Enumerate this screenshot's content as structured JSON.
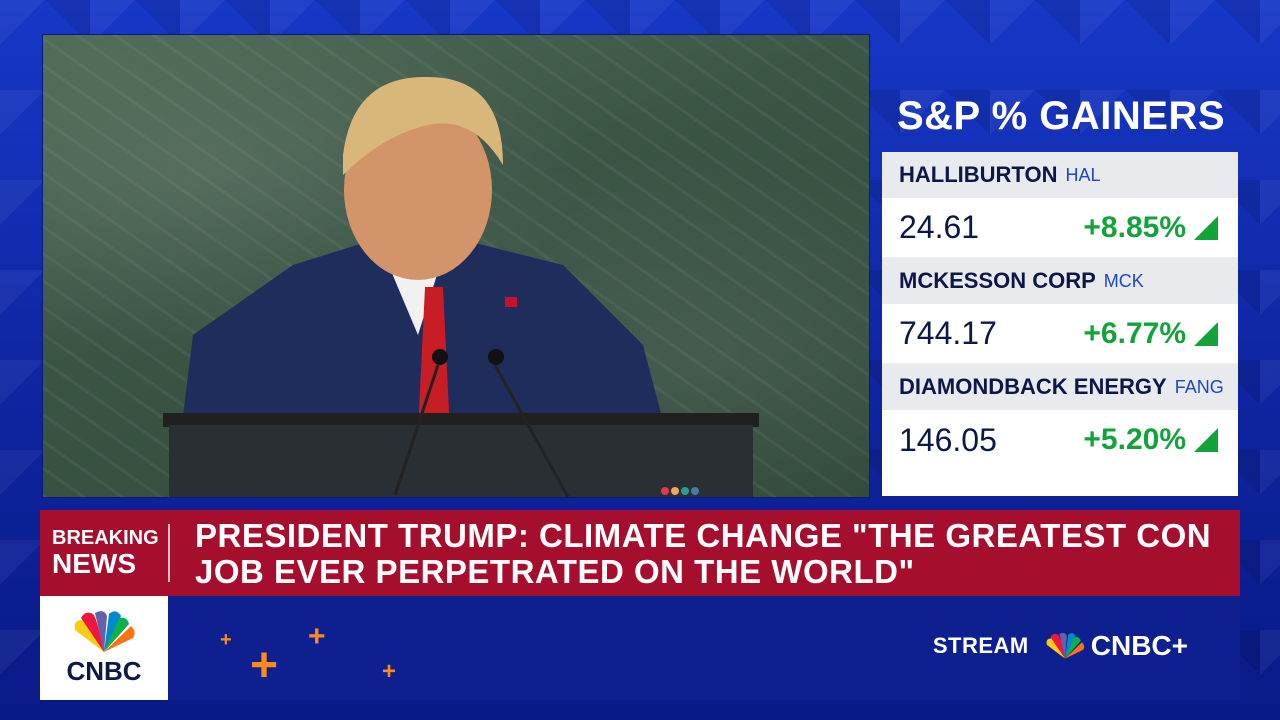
{
  "gainers": {
    "title": "S&P % GAINERS",
    "stocks": [
      {
        "company": "HALLIBURTON",
        "ticker": "HAL",
        "price": "24.61",
        "change": "+8.85%"
      },
      {
        "company": "MCKESSON CORP",
        "ticker": "MCK",
        "price": "744.17",
        "change": "+6.77%"
      },
      {
        "company": "DIAMONDBACK ENERGY",
        "ticker": "FANG",
        "price": "146.05",
        "change": "+5.20%"
      }
    ]
  },
  "banner": {
    "breaking_line1": "BREAKING",
    "breaking_line2": "NEWS",
    "headline": "PRESIDENT TRUMP: CLIMATE CHANGE \"THE GREATEST CON JOB EVER PERPETRATED ON THE WORLD\""
  },
  "bottom": {
    "network": "CNBC",
    "stream_label": "STREAM",
    "cnbc_plus": "CNBC+"
  },
  "colors": {
    "brand_blue": "#0e1f8f",
    "breaking_red": "#a60e2e",
    "gain_green": "#12a33b",
    "accent_orange": "#ff8a1c"
  },
  "icons": [
    "peacock-logo-icon",
    "up-triangle-icon",
    "plus-icon"
  ]
}
